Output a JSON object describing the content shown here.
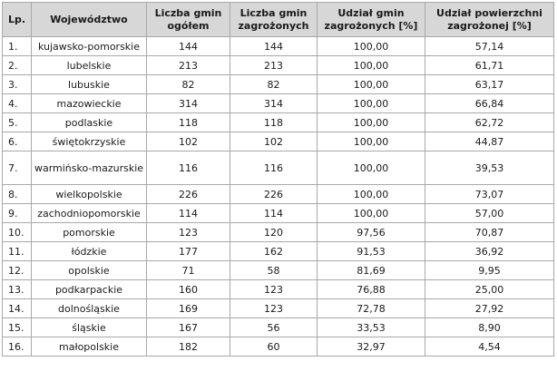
{
  "headers": [
    "Lp.",
    "Województwo",
    "Liczba gmin ogółem",
    "Liczba gmin zagrożonych",
    "Udział gmin zagrożonych [%]",
    "Udział powierzchni zagrożonej [%]"
  ],
  "rows": [
    {
      "lp": "1.",
      "name": "kujawsko-pomorskie",
      "total": "144",
      "threatened": "144",
      "share_gmin": "100,00",
      "share_area": "57,14"
    },
    {
      "lp": "2.",
      "name": "lubelskie",
      "total": "213",
      "threatened": "213",
      "share_gmin": "100,00",
      "share_area": "61,71"
    },
    {
      "lp": "3.",
      "name": "lubuskie",
      "total": "82",
      "threatened": "82",
      "share_gmin": "100,00",
      "share_area": "63,17"
    },
    {
      "lp": "4.",
      "name": "mazowieckie",
      "total": "314",
      "threatened": "314",
      "share_gmin": "100,00",
      "share_area": "66,84"
    },
    {
      "lp": "5.",
      "name": "podlaskie",
      "total": "118",
      "threatened": "118",
      "share_gmin": "100,00",
      "share_area": "62,72"
    },
    {
      "lp": "6.",
      "name": "świętokrzyskie",
      "total": "102",
      "threatened": "102",
      "share_gmin": "100,00",
      "share_area": "44,87"
    },
    {
      "lp": "7.",
      "name": "warmińsko-mazurskie",
      "total": "116",
      "threatened": "116",
      "share_gmin": "100,00",
      "share_area": "39,53"
    },
    {
      "lp": "8.",
      "name": "wielkopolskie",
      "total": "226",
      "threatened": "226",
      "share_gmin": "100,00",
      "share_area": "73,07"
    },
    {
      "lp": "9.",
      "name": "zachodniopomorskie",
      "total": "114",
      "threatened": "114",
      "share_gmin": "100,00",
      "share_area": "57,00"
    },
    {
      "lp": "10.",
      "name": "pomorskie",
      "total": "123",
      "threatened": "120",
      "share_gmin": "97,56",
      "share_area": "70,87"
    },
    {
      "lp": "11.",
      "name": "łódzkie",
      "total": "177",
      "threatened": "162",
      "share_gmin": "91,53",
      "share_area": "36,92"
    },
    {
      "lp": "12.",
      "name": "opolskie",
      "total": "71",
      "threatened": "58",
      "share_gmin": "81,69",
      "share_area": "9,95"
    },
    {
      "lp": "13.",
      "name": "podkarpackie",
      "total": "160",
      "threatened": "123",
      "share_gmin": "76,88",
      "share_area": "25,00"
    },
    {
      "lp": "14.",
      "name": "dolnośląskie",
      "total": "169",
      "threatened": "123",
      "share_gmin": "72,78",
      "share_area": "27,92"
    },
    {
      "lp": "15.",
      "name": "śląskie",
      "total": "167",
      "threatened": "56",
      "share_gmin": "33,53",
      "share_area": "8,90"
    },
    {
      "lp": "16.",
      "name": "małopolskie",
      "total": "182",
      "threatened": "60",
      "share_gmin": "32,97",
      "share_area": "4,54"
    }
  ]
}
